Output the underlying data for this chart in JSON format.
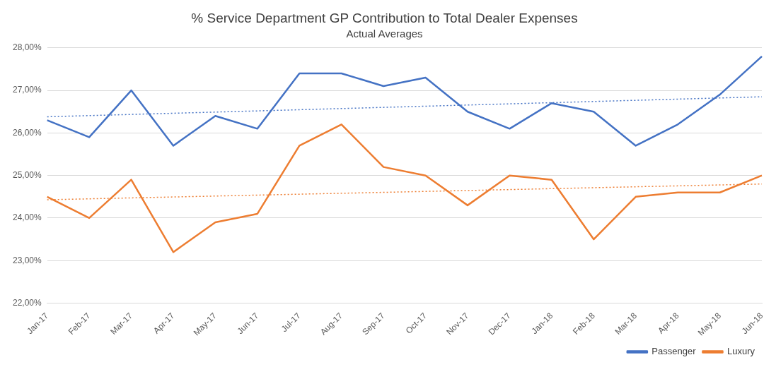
{
  "chart_data": {
    "type": "line",
    "title": "% Service Department GP Contribution to Total Dealer Expenses",
    "subtitle": "Actual Averages",
    "categories": [
      "Jan-17",
      "Feb-17",
      "Mar-17",
      "Apr-17",
      "May-17",
      "Jun-17",
      "Jul-17",
      "Aug-17",
      "Sep-17",
      "Oct-17",
      "Nov-17",
      "Dec-17",
      "Jan-18",
      "Feb-18",
      "Mar-18",
      "Apr-18",
      "May-18",
      "Jun-18"
    ],
    "series": [
      {
        "name": "Passenger",
        "color": "#4472c4",
        "values": [
          26.3,
          25.9,
          27.0,
          25.7,
          26.4,
          26.1,
          27.4,
          27.4,
          27.1,
          27.3,
          26.5,
          26.1,
          26.7,
          26.5,
          25.7,
          26.2,
          26.9,
          27.8
        ]
      },
      {
        "name": "Luxury",
        "color": "#ed7d31",
        "values": [
          24.5,
          24.0,
          24.9,
          23.2,
          23.9,
          24.1,
          25.7,
          26.2,
          25.2,
          25.0,
          24.3,
          25.0,
          24.9,
          23.5,
          24.5,
          24.6,
          24.6,
          25.0
        ]
      },
      {
        "type": "line",
        "color": "#4472c4",
        "line_style": "dotted",
        "x": [
          "Jan-17",
          "Jun-18"
        ],
        "values": [
          26.38,
          26.85
        ]
      },
      {
        "type": "line",
        "color": "#ed7d31",
        "line_style": "dotted",
        "x": [
          "Jan-17",
          "Jun-18"
        ],
        "values": [
          24.43,
          24.8
        ]
      }
    ],
    "ylim": [
      22,
      28
    ],
    "yticks": [
      {
        "value": 22,
        "label": "22,00%"
      },
      {
        "value": 23,
        "label": "23,00%"
      },
      {
        "value": 24,
        "label": "24,00%"
      },
      {
        "value": 25,
        "label": "25,00%"
      },
      {
        "value": 26,
        "label": "26,00%"
      },
      {
        "value": 27,
        "label": "27,00%"
      },
      {
        "value": 28,
        "label": "28,00%"
      }
    ],
    "grid": "y",
    "legend": "bottom right",
    "marker": "none",
    "line_style": "solid"
  }
}
